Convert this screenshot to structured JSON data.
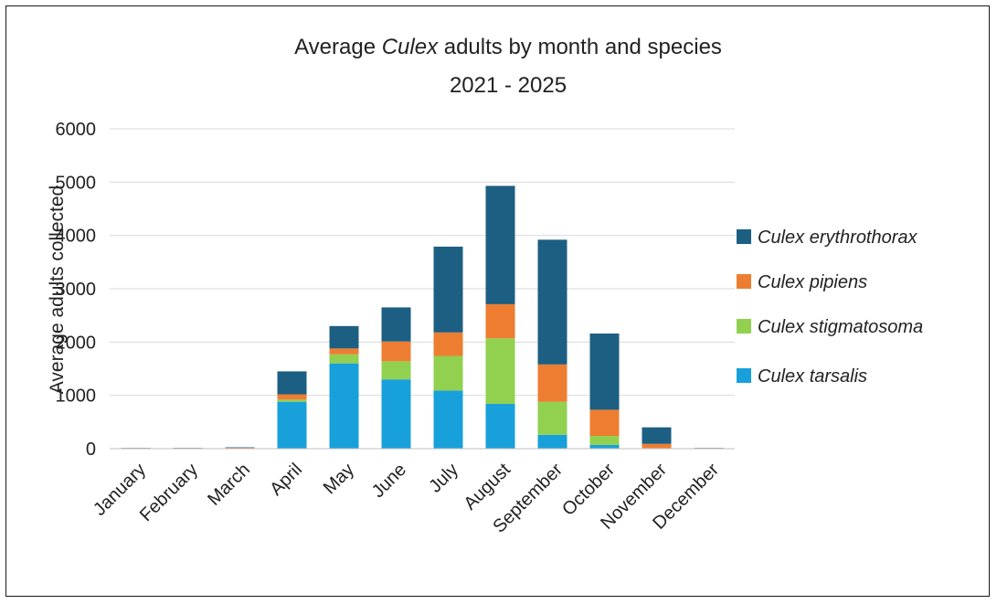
{
  "chart_data": {
    "type": "bar",
    "stacked": true,
    "title_prefix": "Average ",
    "title_italic": "Culex",
    "title_suffix": " adults by month and species",
    "subtitle": "2021 - 2025",
    "xlabel": "",
    "ylabel": "Average adults collected",
    "ylim": [
      0,
      6000
    ],
    "yticks": [
      0,
      1000,
      2000,
      3000,
      4000,
      5000,
      6000
    ],
    "grid": true,
    "legend_position": "right",
    "categories": [
      "January",
      "February",
      "March",
      "April",
      "May",
      "June",
      "July",
      "August",
      "September",
      "October",
      "November",
      "December"
    ],
    "series": [
      {
        "name": "Culex tarsalis",
        "color": "#18a0db",
        "values": [
          3,
          3,
          5,
          880,
          1600,
          1300,
          1090,
          840,
          260,
          70,
          5,
          3
        ]
      },
      {
        "name": "Culex stigmatosoma",
        "color": "#92d050",
        "values": [
          2,
          2,
          3,
          40,
          170,
          340,
          650,
          1230,
          620,
          170,
          5,
          2
        ]
      },
      {
        "name": "Culex pipiens",
        "color": "#ed7d31",
        "values": [
          7,
          8,
          8,
          100,
          110,
          370,
          440,
          640,
          700,
          490,
          80,
          8
        ]
      },
      {
        "name": "Culex erythrothorax",
        "color": "#1c5f82",
        "values": [
          3,
          3,
          9,
          430,
          420,
          640,
          1610,
          2220,
          2340,
          1430,
          310,
          3
        ]
      }
    ]
  }
}
